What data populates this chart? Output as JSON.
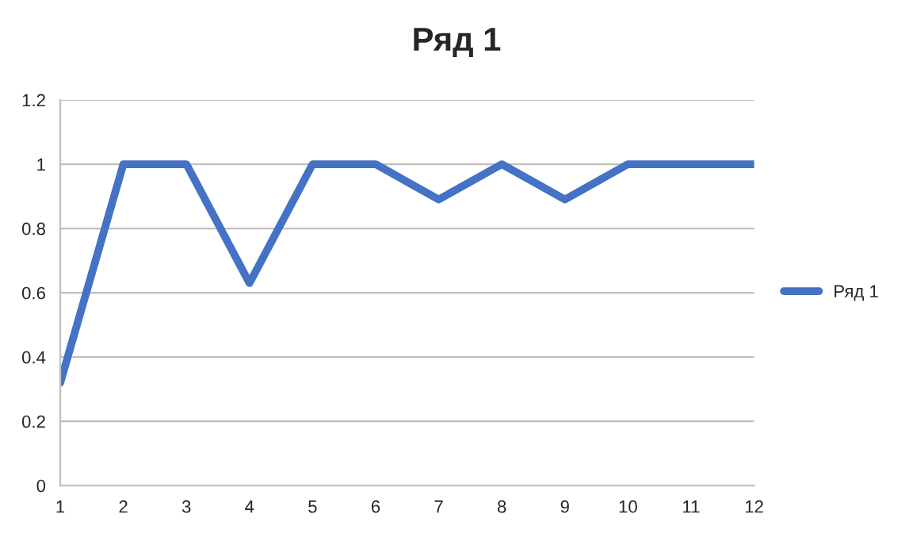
{
  "chart_data": {
    "type": "line",
    "title": "Ряд 1",
    "categories": [
      "1",
      "2",
      "3",
      "4",
      "5",
      "6",
      "7",
      "8",
      "9",
      "10",
      "11",
      "12"
    ],
    "series": [
      {
        "name": "Ряд 1",
        "color": "#4472c4",
        "values": [
          0.32,
          1,
          1,
          0.63,
          1,
          1,
          0.89,
          1,
          0.89,
          1,
          1,
          1
        ]
      }
    ],
    "ylim": [
      0,
      1.2
    ],
    "yticks": [
      0,
      0.2,
      0.4,
      0.6,
      0.8,
      1,
      1.2
    ],
    "grid": "y",
    "legend": "right",
    "marker": "none",
    "line_style": "solid"
  }
}
